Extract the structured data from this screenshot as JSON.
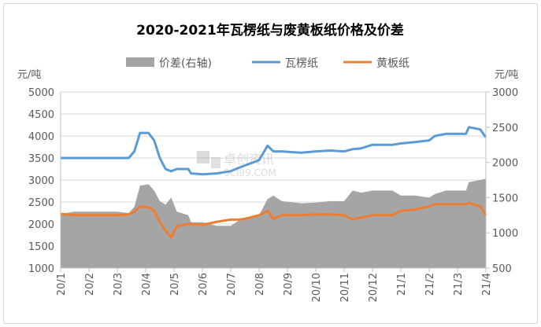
{
  "chart_data": {
    "type": "line",
    "title": "2020-2021年瓦楞纸与废黄板纸价格及价差",
    "ylabel_left": "元/吨",
    "ylabel_right": "元/吨",
    "ylim_left": [
      1000,
      5000
    ],
    "yticks_left": [
      1000,
      1500,
      2000,
      2500,
      3000,
      3500,
      4000,
      4500,
      5000
    ],
    "ylim_right": [
      500,
      3000
    ],
    "yticks_right": [
      500,
      1000,
      1500,
      2000,
      2500,
      3000
    ],
    "xlim": [
      0,
      15
    ],
    "xtick_labels": [
      "20/1",
      "20/2",
      "20/3",
      "20/4",
      "20/5",
      "20/6",
      "20/7",
      "20/8",
      "20/9",
      "20/10",
      "20/11",
      "20/12",
      "21/1",
      "21/2",
      "21/3",
      "21/4"
    ],
    "grid": true,
    "legend_position": "top",
    "watermark": "卓创资讯 SCI99.COM",
    "x": [
      0,
      0.5,
      1,
      1.5,
      2,
      2.4,
      2.6,
      2.8,
      3.1,
      3.3,
      3.5,
      3.7,
      3.9,
      4.1,
      4.5,
      4.6,
      5,
      5.5,
      6,
      6.3,
      6.5,
      7,
      7.3,
      7.5,
      7.8,
      8.5,
      9,
      9.5,
      10,
      10.3,
      10.6,
      11,
      11.7,
      12,
      12.5,
      13,
      13.2,
      13.6,
      14.3,
      14.4,
      14.8,
      15
    ],
    "series": [
      {
        "name": "价差(右轴)",
        "type": "area",
        "axis": "right",
        "color": "#a5a5a5",
        "values": [
          1270,
          1300,
          1300,
          1300,
          1300,
          1280,
          1370,
          1670,
          1690,
          1600,
          1450,
          1400,
          1500,
          1300,
          1250,
          1150,
          1150,
          1100,
          1100,
          1180,
          1210,
          1250,
          1480,
          1530,
          1450,
          1420,
          1430,
          1450,
          1450,
          1600,
          1570,
          1600,
          1600,
          1530,
          1530,
          1500,
          1550,
          1600,
          1600,
          1720,
          1750,
          1770
        ]
      },
      {
        "name": "瓦楞纸",
        "type": "line",
        "axis": "left",
        "color": "#5b9bd5",
        "values": [
          3500,
          3500,
          3500,
          3500,
          3500,
          3500,
          3650,
          4070,
          4070,
          3900,
          3500,
          3250,
          3200,
          3250,
          3250,
          3150,
          3130,
          3150,
          3200,
          3280,
          3330,
          3450,
          3780,
          3650,
          3650,
          3620,
          3650,
          3670,
          3650,
          3700,
          3720,
          3800,
          3800,
          3830,
          3860,
          3900,
          4000,
          4050,
          4050,
          4200,
          4150,
          3970
        ]
      },
      {
        "name": "黄板纸",
        "type": "line",
        "axis": "left",
        "color": "#ed7d31",
        "values": [
          2230,
          2200,
          2200,
          2200,
          2200,
          2220,
          2280,
          2400,
          2380,
          2300,
          2050,
          1850,
          1700,
          1950,
          2000,
          2000,
          1980,
          2050,
          2100,
          2100,
          2120,
          2200,
          2300,
          2120,
          2200,
          2200,
          2220,
          2220,
          2200,
          2100,
          2150,
          2200,
          2200,
          2300,
          2330,
          2400,
          2450,
          2450,
          2450,
          2480,
          2400,
          2200
        ]
      }
    ]
  }
}
